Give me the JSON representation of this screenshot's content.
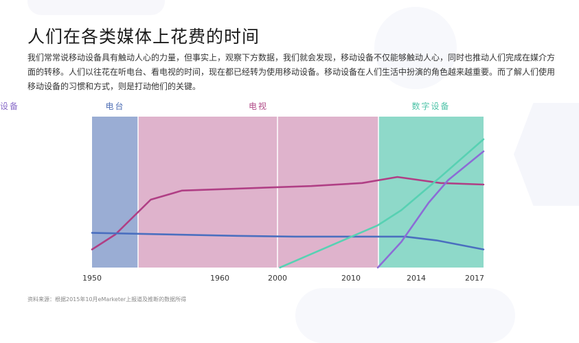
{
  "page": {
    "title": "人们在各类媒体上花费的时间",
    "paragraph": "我们常常说移动设备具有触动人心的力量，但事实上，观察下方数据，我们就会发现，移动设备不仅能够触动人心，同时也推动人们完成在媒介方面的转移。人们以往花在听电台、看电视的时间，现在都已经转为使用移动设备。移动设备在人们生活中扮演的角色越来越重要。而了解人们使用移动设备的习惯和方式，则是打动他们的关键。",
    "footnote": "资料来源：根据2015年10月eMarketer上报道及推断的数据所得"
  },
  "chart_data": {
    "type": "line",
    "title": "",
    "xlabel": "",
    "ylabel": "",
    "x_ticks": [
      "1950",
      "1960",
      "2000",
      "2010",
      "2014",
      "2017"
    ],
    "eras": [
      {
        "label": "电台",
        "from": 0,
        "to": 1,
        "color": "#9aadd4",
        "text_color": "#4f6fb5"
      },
      {
        "label": "电视",
        "from": 1,
        "to": 3,
        "color": "#dfb3cc",
        "text_color": "#b04a87"
      },
      {
        "label": "数字设备",
        "from": 3,
        "to": 4,
        "color": "#8ed9c9",
        "text_color": "#4ec3a8"
      },
      {
        "label": "移动设备",
        "from": 4,
        "to": 5,
        "color": "#c9bde7",
        "text_color": "#8a6cc9"
      }
    ],
    "ylim": [
      0,
      100
    ],
    "series": [
      {
        "color": "#b03f85",
        "points": [
          [
            0,
            12
          ],
          [
            0.6,
            22
          ],
          [
            1.5,
            45
          ],
          [
            2.3,
            51
          ],
          [
            5.6,
            54
          ],
          [
            6.9,
            56
          ],
          [
            7.8,
            60
          ],
          [
            8.9,
            56
          ],
          [
            10.0,
            55
          ]
        ]
      },
      {
        "color": "#4a6fbf",
        "points": [
          [
            0,
            23
          ],
          [
            3.7,
            21
          ],
          [
            5.2,
            20.5
          ],
          [
            8.0,
            20.5
          ],
          [
            8.8,
            18
          ],
          [
            10.0,
            12
          ]
        ]
      },
      {
        "color": "#58d1b3",
        "points": [
          [
            4.8,
            0
          ],
          [
            7.3,
            28
          ],
          [
            7.9,
            38
          ],
          [
            8.9,
            60
          ],
          [
            10.0,
            85
          ]
        ]
      },
      {
        "color": "#8c6cd6",
        "points": [
          [
            7.3,
            0
          ],
          [
            7.9,
            17
          ],
          [
            8.6,
            43
          ],
          [
            9.1,
            58
          ],
          [
            10.0,
            77
          ]
        ]
      }
    ],
    "grid": false,
    "legend": "none"
  }
}
